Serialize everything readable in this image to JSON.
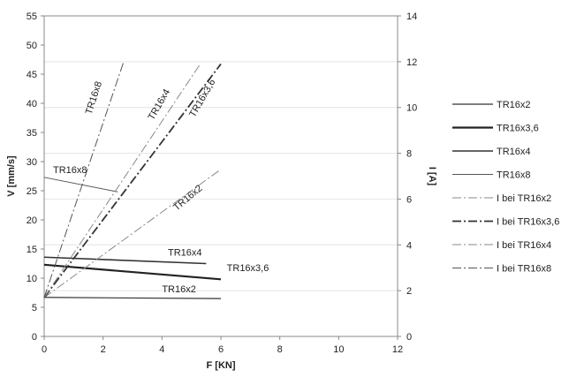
{
  "chart_data": {
    "type": "line",
    "xlabel": "F [KN]",
    "ylabel_left": "V [mm/s]",
    "ylabel_right": "I [A]",
    "xlim": [
      0,
      12
    ],
    "ylim_left": [
      0,
      55
    ],
    "ylim_right": [
      0,
      14
    ],
    "xticks": [
      0,
      2,
      4,
      6,
      8,
      10,
      12
    ],
    "yticks_left": [
      0,
      5,
      10,
      15,
      20,
      25,
      30,
      35,
      40,
      45,
      50,
      55
    ],
    "yticks_right": [
      0,
      2,
      4,
      6,
      8,
      10,
      12,
      14
    ],
    "grid": true,
    "legend_position": "right",
    "series": [
      {
        "name": "TR16x2",
        "axis": "left",
        "style": "solid",
        "width": 1.2,
        "color": "#333333",
        "x": [
          0,
          6
        ],
        "y": [
          6.7,
          6.5
        ],
        "label": "TR16x2",
        "label_at": [
          4.0,
          7.6
        ],
        "label_angle": 0
      },
      {
        "name": "TR16x3,6",
        "axis": "left",
        "style": "solid",
        "width": 2.2,
        "color": "#222222",
        "x": [
          0,
          6
        ],
        "y": [
          12.3,
          9.8
        ],
        "label": "TR16x3,6",
        "label_at": [
          6.2,
          11.2
        ],
        "label_angle": 0
      },
      {
        "name": "TR16x4",
        "axis": "left",
        "style": "solid",
        "width": 1.6,
        "color": "#333333",
        "x": [
          0,
          5.5
        ],
        "y": [
          13.6,
          12.5
        ],
        "label": "TR16x4",
        "label_at": [
          4.2,
          13.9
        ],
        "label_angle": 0
      },
      {
        "name": "TR16x8",
        "axis": "left",
        "style": "solid",
        "width": 1.0,
        "color": "#555555",
        "x": [
          0,
          2.5
        ],
        "y": [
          27.3,
          24.8
        ],
        "label": "TR16x8",
        "label_at": [
          0.3,
          28.0
        ],
        "label_angle": 0
      },
      {
        "name": "I bei TR16x2",
        "axis": "right",
        "style": "dashdot",
        "width": 1.0,
        "color": "#888888",
        "x": [
          0,
          6
        ],
        "y": [
          1.7,
          7.3
        ],
        "label": "TR16x2",
        "label_at": [
          4.5,
          21.5
        ],
        "label_angle": -40
      },
      {
        "name": "I bei TR16x3,6",
        "axis": "right",
        "style": "dashdot",
        "width": 1.8,
        "color": "#333333",
        "x": [
          0,
          6
        ],
        "y": [
          1.7,
          11.9
        ],
        "label": "TR16x3,6",
        "label_at": [
          5.1,
          37.5
        ],
        "label_angle": -60
      },
      {
        "name": "I bei TR16x4",
        "axis": "right",
        "style": "dashdot",
        "width": 1.0,
        "color": "#888888",
        "x": [
          0,
          5.3
        ],
        "y": [
          1.7,
          11.9
        ],
        "label": "TR16x4",
        "label_at": [
          3.7,
          37.0
        ],
        "label_angle": -60
      },
      {
        "name": "I bei TR16x8",
        "axis": "right",
        "style": "dashdot",
        "width": 1.0,
        "color": "#555555",
        "x": [
          0,
          2.7
        ],
        "y": [
          1.7,
          12.0
        ],
        "label": "TR16x8",
        "label_at": [
          1.6,
          38.0
        ],
        "label_angle": -72
      }
    ]
  }
}
